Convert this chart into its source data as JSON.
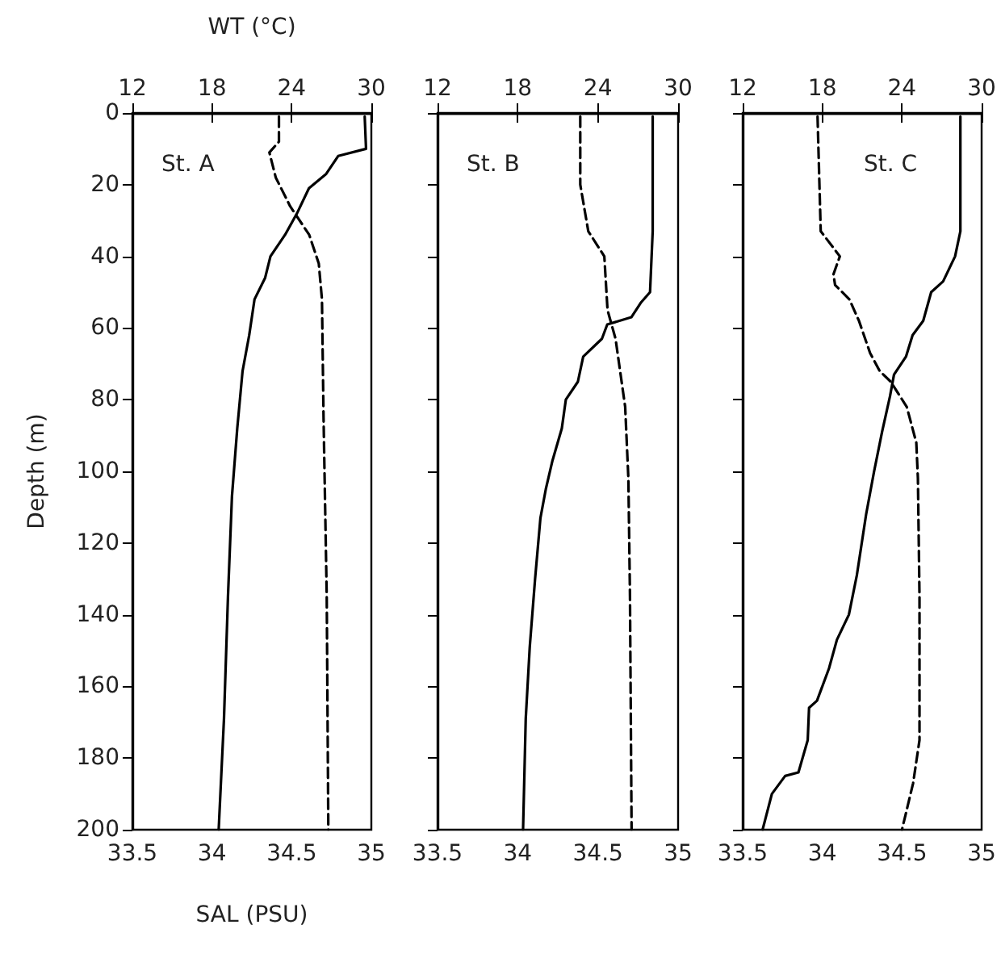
{
  "chart_data": [
    {
      "type": "line",
      "xlabel": "SAL (PSU)",
      "x2label": "WT (°C)",
      "ylabel": "Depth (m)",
      "xlim": [
        33.5,
        35
      ],
      "xticks": [
        33.5,
        34,
        34.5,
        35
      ],
      "x2lim": [
        12,
        30
      ],
      "x2ticks": [
        12,
        18,
        24,
        30
      ],
      "ylim": [
        200,
        0
      ],
      "yticks": [
        0,
        20,
        40,
        60,
        80,
        100,
        120,
        140,
        160,
        180,
        200
      ],
      "annotations": [
        "St. A"
      ],
      "series": [
        {
          "axis": "x2",
          "color": "#000000",
          "line_style": "solid",
          "x": [
            29.5,
            29.6,
            27.5,
            26.6,
            25.3,
            24.4,
            23.5,
            22.4,
            22.0,
            21.2,
            20.8,
            20.3,
            19.9,
            19.5,
            19.2,
            18.9,
            18.5
          ],
          "values": [
            1,
            10,
            12,
            17,
            21,
            28,
            34,
            40,
            46,
            52,
            62,
            72,
            88,
            107,
            135,
            169,
            200
          ]
        },
        {
          "color": "#000000",
          "line_style": "dashed",
          "x": [
            34.42,
            34.42,
            34.36,
            34.4,
            34.49,
            34.61,
            34.67,
            34.69,
            34.7,
            34.72,
            34.73
          ],
          "values": [
            1,
            8,
            11,
            18,
            26,
            34,
            42,
            52,
            85,
            135,
            200
          ]
        }
      ]
    },
    {
      "type": "line",
      "xlim": [
        33.5,
        35
      ],
      "xticks": [
        33.5,
        34,
        34.5,
        35
      ],
      "x2lim": [
        12,
        30
      ],
      "x2ticks": [
        12,
        18,
        24,
        30
      ],
      "ylim": [
        200,
        0
      ],
      "yticks": [
        0,
        20,
        40,
        60,
        80,
        100,
        120,
        140,
        160,
        180,
        200
      ],
      "tick_labels": "x",
      "annotations": [
        "St. B"
      ],
      "series": [
        {
          "axis": "x2",
          "color": "#000000",
          "line_style": "solid",
          "x": [
            28.1,
            28.1,
            27.9,
            27.2,
            26.5,
            24.7,
            24.3,
            22.9,
            22.5,
            21.6,
            21.3,
            20.6,
            20.1,
            19.7,
            19.3,
            18.9,
            18.6,
            18.4
          ],
          "values": [
            1,
            33,
            50,
            53,
            57,
            59,
            63,
            68,
            75,
            80,
            88,
            97,
            105,
            113,
            130,
            149,
            169,
            200
          ]
        },
        {
          "color": "#000000",
          "line_style": "dashed",
          "x": [
            34.39,
            34.39,
            34.44,
            34.54,
            34.56,
            34.61,
            34.67,
            34.69,
            34.7,
            34.71
          ],
          "values": [
            1,
            20,
            33,
            40,
            55,
            63,
            82,
            102,
            135,
            200
          ]
        }
      ]
    },
    {
      "type": "line",
      "xlim": [
        33.5,
        35
      ],
      "xticks": [
        33.5,
        34,
        34.5,
        35
      ],
      "x2lim": [
        12,
        30
      ],
      "x2ticks": [
        12,
        18,
        24,
        30
      ],
      "ylim": [
        200,
        0
      ],
      "yticks": [
        0,
        20,
        40,
        60,
        80,
        100,
        120,
        140,
        160,
        180,
        200
      ],
      "tick_labels": "x",
      "annotations": [
        "St. C"
      ],
      "series": [
        {
          "axis": "x2",
          "color": "#000000",
          "line_style": "solid",
          "x": [
            28.4,
            28.4,
            28.0,
            27.1,
            26.2,
            25.6,
            24.8,
            24.3,
            23.4,
            23.1,
            22.5,
            21.9,
            21.3,
            20.6,
            20.0,
            19.1,
            18.5,
            17.6,
            17.0,
            16.9,
            16.2,
            15.2,
            14.2,
            13.5
          ],
          "values": [
            1,
            33,
            40,
            47,
            50,
            58,
            62,
            68,
            73,
            79,
            89,
            100,
            112,
            129,
            140,
            147,
            155,
            164,
            166,
            175,
            184,
            185,
            190,
            200
          ]
        },
        {
          "color": "#000000",
          "line_style": "dashed",
          "x": [
            33.97,
            33.99,
            34.11,
            34.07,
            34.08,
            34.17,
            34.23,
            34.3,
            34.36,
            34.43,
            34.53,
            34.59,
            34.6,
            34.61,
            34.61,
            34.57,
            34.5
          ],
          "values": [
            1,
            33,
            40,
            45,
            48,
            52,
            58,
            67,
            72,
            75,
            82,
            92,
            102,
            135,
            175,
            187,
            200
          ]
        }
      ]
    }
  ]
}
